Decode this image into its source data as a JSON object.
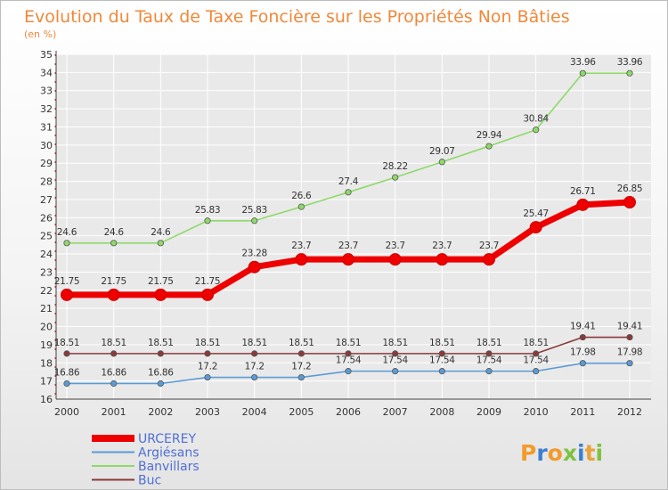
{
  "chart_data": {
    "type": "line",
    "title": "Evolution du Taux de Taxe Foncière sur les Propriétés Non Bâties",
    "subtitle": "(en %)",
    "xlabel": "",
    "ylabel": "",
    "x": [
      "2000",
      "2001",
      "2002",
      "2003",
      "2004",
      "2005",
      "2006",
      "2007",
      "2008",
      "2009",
      "2010",
      "2011",
      "2012"
    ],
    "ylim": [
      16,
      35
    ],
    "yticks": [
      "16",
      "17",
      "18",
      "19",
      "20",
      "21",
      "22",
      "23",
      "24",
      "25",
      "26",
      "27",
      "28",
      "29",
      "30",
      "31",
      "32",
      "33",
      "34",
      "35"
    ],
    "grid": true,
    "legend_position": "bottom-left",
    "series": [
      {
        "name": "URCEREY",
        "color": "#ee0000",
        "thick": true,
        "values": [
          21.75,
          21.75,
          21.75,
          21.75,
          23.28,
          23.7,
          23.7,
          23.7,
          23.7,
          23.7,
          25.47,
          26.71,
          26.85
        ],
        "labels": [
          "21.75",
          "21.75",
          "21.75",
          "21.75",
          "23.28",
          "23.7",
          "23.7",
          "23.7",
          "23.7",
          "23.7",
          "25.47",
          "26.71",
          "26.85"
        ]
      },
      {
        "name": "Argiésans",
        "color": "#5b9bd5",
        "thick": false,
        "values": [
          16.86,
          16.86,
          16.86,
          17.2,
          17.2,
          17.2,
          17.54,
          17.54,
          17.54,
          17.54,
          17.54,
          17.98,
          17.98
        ],
        "labels": [
          "16.86",
          "16.86",
          "16.86",
          "17.2",
          "17.2",
          "17.2",
          "17.54",
          "17.54",
          "17.54",
          "17.54",
          "17.54",
          "17.98",
          "17.98"
        ]
      },
      {
        "name": "Banvillars",
        "color": "#8fd96a",
        "thick": false,
        "values": [
          24.6,
          24.6,
          24.6,
          25.83,
          25.83,
          26.6,
          27.4,
          28.22,
          29.07,
          29.94,
          30.84,
          33.96,
          33.96
        ],
        "labels": [
          "24.6",
          "24.6",
          "24.6",
          "25.83",
          "25.83",
          "26.6",
          "27.4",
          "28.22",
          "29.07",
          "29.94",
          "30.84",
          "33.96",
          "33.96"
        ]
      },
      {
        "name": "Buc",
        "color": "#8b3a3a",
        "thick": false,
        "values": [
          18.51,
          18.51,
          18.51,
          18.51,
          18.51,
          18.51,
          18.51,
          18.51,
          18.51,
          18.51,
          18.51,
          19.41,
          19.41
        ],
        "labels": [
          "18.51",
          "18.51",
          "18.51",
          "18.51",
          "18.51",
          "18.51",
          "18.51",
          "18.51",
          "18.51",
          "18.51",
          "18.51",
          "19.41",
          "19.41"
        ]
      }
    ]
  },
  "brand": {
    "letters": [
      "P",
      "r",
      "o",
      "x",
      "i",
      "t",
      "i"
    ],
    "colors": [
      "#f29b2b",
      "#3b7fd1",
      "#f29b2b",
      "#7fc241",
      "#3b7fd1",
      "#e8a33a",
      "#7fc241"
    ]
  }
}
